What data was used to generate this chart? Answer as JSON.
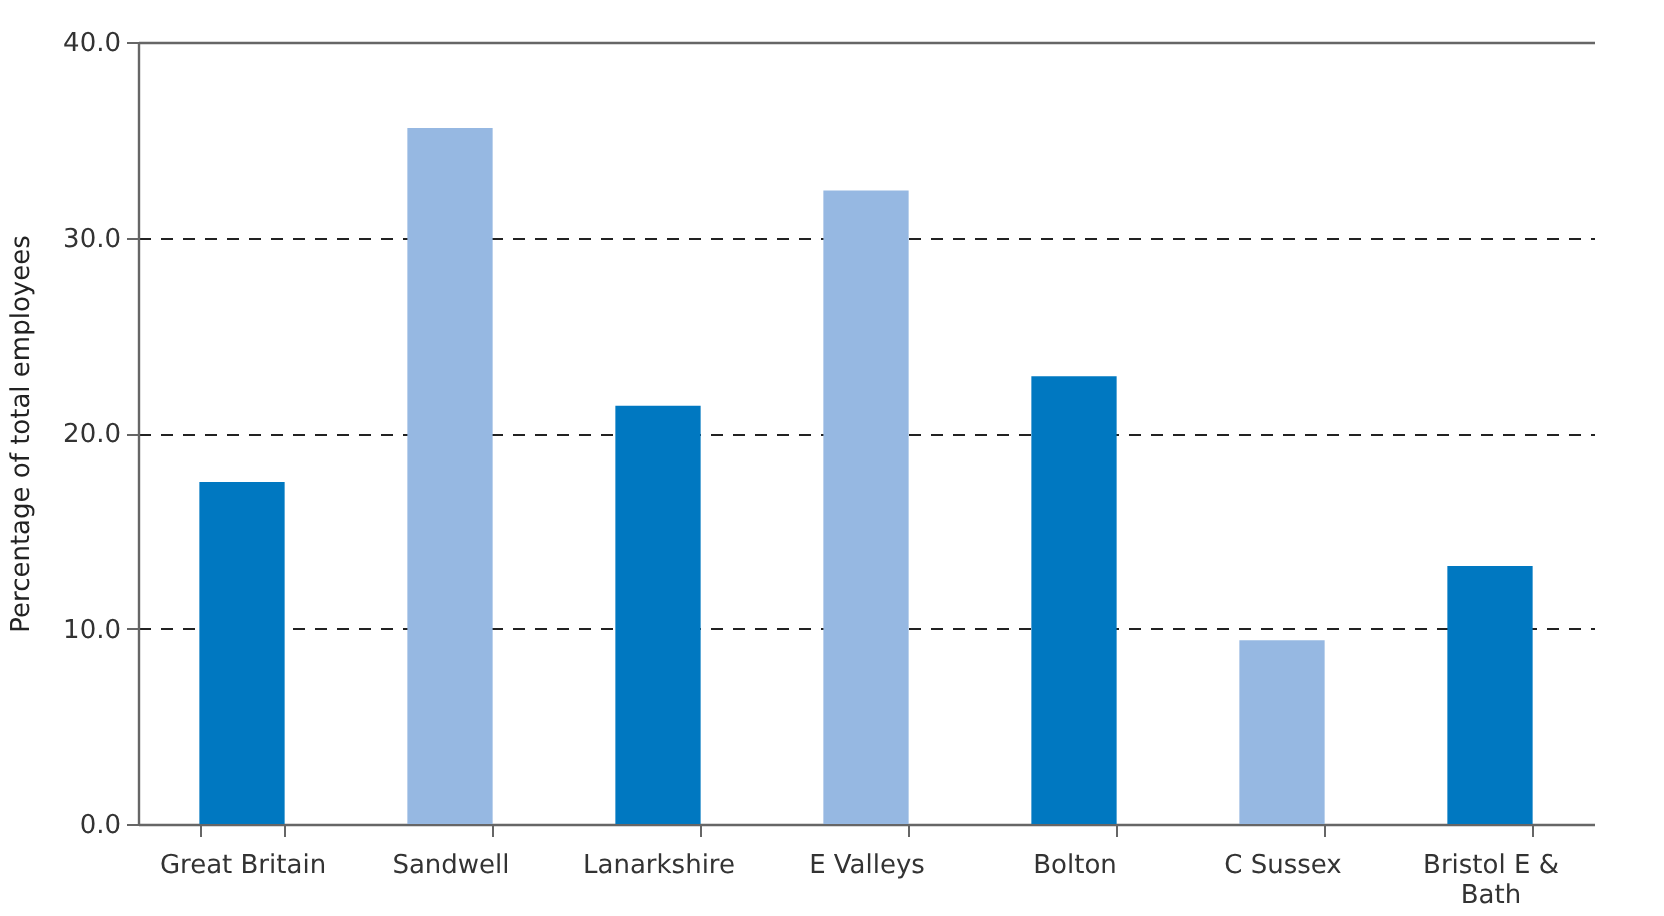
{
  "chart_data": {
    "type": "bar",
    "ylabel": "Percentage of total employees",
    "categories": [
      "Great Britain",
      "Sandwell",
      "Lanarkshire",
      "E Valleys",
      "Bolton",
      "C Sussex",
      "Bristol E & Bath"
    ],
    "values": [
      17.5,
      35.6,
      21.4,
      32.4,
      22.9,
      9.4,
      13.2
    ],
    "colors": [
      "#0078c1",
      "#96b8e2",
      "#0078c1",
      "#96b8e2",
      "#0078c1",
      "#96b8e2",
      "#0078c1"
    ],
    "ylim": [
      0,
      40
    ],
    "yticks": [
      {
        "value": 0,
        "label": "0.0"
      },
      {
        "value": 10,
        "label": "10.0"
      },
      {
        "value": 20,
        "label": "20.0"
      },
      {
        "value": 30,
        "label": "30.0"
      },
      {
        "value": 40,
        "label": "40.0"
      }
    ],
    "grid": "y",
    "legend": false
  }
}
